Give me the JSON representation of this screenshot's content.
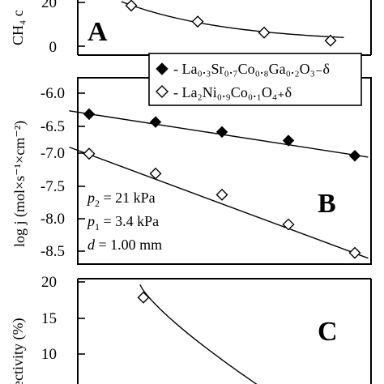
{
  "chart_data": [
    {
      "panel": "A",
      "type": "scatter",
      "panel_label": "A",
      "ylabel": "CH₄ c",
      "yticks": [
        "20",
        "0"
      ],
      "ylim": [
        -3,
        33
      ],
      "xlim": [
        0,
        4
      ],
      "series": [
        {
          "name": "La₂Ni₀.₉Co₀.₁O₄₊δ",
          "marker": "open-diamond",
          "x": [
            1,
            2,
            3,
            4
          ],
          "y": [
            20.5,
            12.5,
            7,
            3
          ]
        }
      ],
      "fit": {
        "type": "curve",
        "x": [
          0.85,
          4.2
        ],
        "y": [
          22.5,
          2
        ]
      }
    },
    {
      "panel": "B",
      "type": "scatter",
      "panel_label": "B",
      "ylabel": "log j (mol×s⁻¹×cm⁻²)",
      "ylim": [
        -8.67,
        -5.85
      ],
      "xlim": [
        0,
        5
      ],
      "yticks": [
        "-6.0",
        "-6.5",
        "-7.0",
        "-7.5",
        "-8.0",
        "-8.5"
      ],
      "tick_values": [
        -6.0,
        -6.5,
        -7.0,
        -7.5,
        -8.0,
        -8.5
      ],
      "legend": {
        "position": "top-right"
      },
      "series": [
        {
          "name": "La₀.₃Sr₀.₇Co₀.₈Ga₀.₂O₃₋δ",
          "marker": "filled-diamond",
          "x": [
            1,
            2,
            3,
            4,
            5
          ],
          "y": [
            -6.4,
            -6.52,
            -6.67,
            -6.8,
            -7.03
          ]
        },
        {
          "name": "La₂Ni₀.₉Co₀.₁O₄₊δ",
          "marker": "open-diamond",
          "x": [
            1,
            2,
            3,
            4,
            5
          ],
          "y": [
            -7.0,
            -7.3,
            -7.62,
            -8.07,
            -8.5
          ]
        }
      ],
      "fits": [
        {
          "x": [
            0.7,
            5.2
          ],
          "y": [
            -6.35,
            -7.05
          ]
        },
        {
          "x": [
            0.7,
            5.2
          ],
          "y": [
            -6.9,
            -8.58
          ]
        }
      ],
      "annotations": [
        {
          "symbol": "p",
          "sub": "2",
          "text": " = 21 kPa"
        },
        {
          "symbol": "p",
          "sub": "1",
          "text": " = 3.4 kPa"
        },
        {
          "symbol": "d",
          "sub": "",
          "text": " = 1.00 mm"
        }
      ]
    },
    {
      "panel": "C",
      "type": "scatter",
      "panel_label": "C",
      "ylabel": "ectivity (%)",
      "ylim": [
        5.3,
        20.7
      ],
      "xlim": [
        0,
        5
      ],
      "yticks": [
        "20",
        "15",
        "10"
      ],
      "tick_values": [
        20,
        15,
        10
      ],
      "series": [
        {
          "name": "La₂Ni₀.₉Co₀.₁O₄₊δ",
          "marker": "open-diamond",
          "x": [
            1
          ],
          "y": [
            16.8
          ]
        }
      ],
      "fit": {
        "type": "curve",
        "x": [
          0.95,
          2.75
        ],
        "y": [
          18.5,
          5
        ]
      }
    }
  ]
}
